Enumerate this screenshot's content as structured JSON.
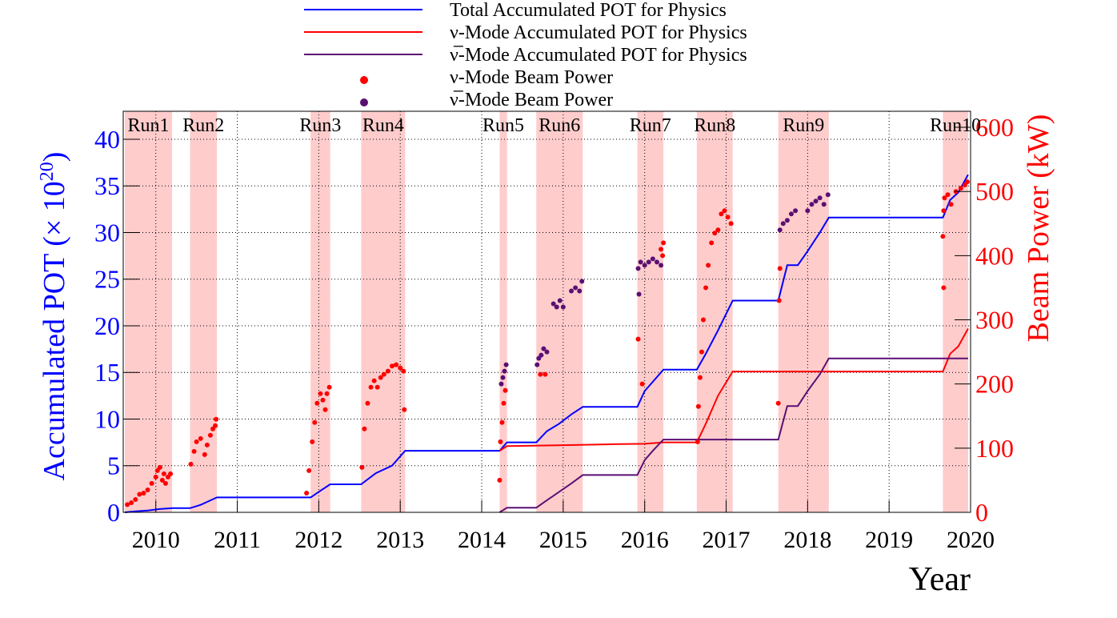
{
  "chart_data": {
    "type": "line",
    "title": "",
    "xlabel": "Year",
    "ylabel_left": "Accumulated POT (× 10",
    "ylabel_left_exp": "20",
    "ylabel_left_close": ")",
    "ylabel_right": "Beam Power (kW)",
    "xlim": [
      2009.6,
      2020.0
    ],
    "ylim_left": [
      0,
      43
    ],
    "ylim_right": [
      0,
      625
    ],
    "x_ticks": [
      2010,
      2011,
      2012,
      2013,
      2014,
      2015,
      2016,
      2017,
      2018,
      2019,
      2020
    ],
    "x_tick_labels": [
      "2010",
      "2011",
      "2012",
      "2013",
      "2014",
      "2015",
      "2016",
      "2017",
      "2018",
      "2019",
      "2020"
    ],
    "y_left_ticks": [
      0,
      5,
      10,
      15,
      20,
      25,
      30,
      35,
      40
    ],
    "y_left_tick_labels": [
      "0",
      "5",
      "10",
      "15",
      "20",
      "25",
      "30",
      "35",
      "40"
    ],
    "y_right_ticks": [
      0,
      100,
      200,
      300,
      400,
      500,
      600
    ],
    "y_right_tick_labels": [
      "0",
      "100",
      "200",
      "300",
      "400",
      "500",
      "600"
    ],
    "grid": true,
    "legend_position": "top-center",
    "colors": {
      "total": "#0000ff",
      "nu": "#ff0000",
      "nubar": "#5b0f73",
      "run_band": "#ffcccc",
      "left_axis": "#0000ff",
      "right_axis": "#ff0000"
    },
    "legend": [
      {
        "label": "Total Accumulated POT for Physics",
        "kind": "line",
        "color": "#0000ff"
      },
      {
        "label": "ν-Mode Accumulated POT for Physics",
        "kind": "line",
        "color": "#ff0000"
      },
      {
        "label": "ν̅-Mode Accumulated POT for Physics",
        "kind": "line",
        "color": "#5b0f73"
      },
      {
        "label": "ν-Mode Beam Power",
        "kind": "marker",
        "color": "#ff0000"
      },
      {
        "label": "ν̅-Mode Beam Power",
        "kind": "marker",
        "color": "#5b0f73"
      }
    ],
    "runs": [
      {
        "name": "Run1",
        "start": 2009.62,
        "end": 2010.2
      },
      {
        "name": "Run2",
        "start": 2010.42,
        "end": 2010.75
      },
      {
        "name": "Run3",
        "start": 2011.9,
        "end": 2012.14
      },
      {
        "name": "Run4",
        "start": 2012.52,
        "end": 2013.06
      },
      {
        "name": "Run5",
        "start": 2014.22,
        "end": 2014.31
      },
      {
        "name": "Run6",
        "start": 2014.67,
        "end": 2015.24
      },
      {
        "name": "Run7",
        "start": 2015.91,
        "end": 2016.23
      },
      {
        "name": "Run8",
        "start": 2016.64,
        "end": 2017.08
      },
      {
        "name": "Run9",
        "start": 2017.64,
        "end": 2018.26
      },
      {
        "name": "Run10",
        "start": 2019.66,
        "end": 2019.97
      }
    ],
    "series": [
      {
        "name": "Total Accumulated POT for Physics",
        "axis": "left",
        "x": [
          2009.62,
          2009.75,
          2009.9,
          2010.05,
          2010.2,
          2010.42,
          2010.55,
          2010.75,
          2011.9,
          2012.0,
          2012.14,
          2012.52,
          2012.7,
          2012.9,
          2013.06,
          2014.22,
          2014.31,
          2014.67,
          2014.8,
          2014.95,
          2015.1,
          2015.24,
          2015.91,
          2016.0,
          2016.1,
          2016.23,
          2016.64,
          2016.75,
          2016.9,
          2017.08,
          2017.64,
          2017.75,
          2017.88,
          2018.0,
          2018.15,
          2018.26,
          2019.66,
          2019.75,
          2019.85,
          2019.97
        ],
        "values": [
          0.0,
          0.1,
          0.2,
          0.35,
          0.45,
          0.45,
          0.8,
          1.6,
          1.6,
          2.2,
          3.0,
          3.0,
          4.2,
          5.0,
          6.6,
          6.6,
          7.5,
          7.5,
          8.7,
          9.5,
          10.5,
          11.3,
          11.3,
          13.0,
          14.0,
          15.3,
          15.3,
          17.0,
          19.5,
          22.7,
          22.7,
          26.5,
          26.5,
          28.0,
          30.0,
          31.6,
          31.6,
          33.5,
          34.3,
          36.2
        ]
      },
      {
        "name": "ν-Mode Accumulated POT for Physics",
        "axis": "left",
        "x": [
          2014.22,
          2014.31,
          2015.0,
          2015.6,
          2016.0,
          2016.23,
          2016.64,
          2016.75,
          2016.9,
          2017.08,
          2019.66,
          2019.75,
          2019.85,
          2019.97
        ],
        "values": [
          6.6,
          7.1,
          7.2,
          7.3,
          7.35,
          7.5,
          7.5,
          9.5,
          12.5,
          15.1,
          15.1,
          17.0,
          17.8,
          19.7
        ]
      },
      {
        "name": "ν̅-Mode Accumulated POT for Physics",
        "axis": "left",
        "x": [
          2014.22,
          2014.31,
          2014.67,
          2014.8,
          2014.95,
          2015.1,
          2015.24,
          2015.91,
          2016.0,
          2016.1,
          2016.23,
          2017.64,
          2017.75,
          2017.88,
          2018.0,
          2018.15,
          2018.26,
          2019.97
        ],
        "values": [
          0.0,
          0.5,
          0.5,
          1.3,
          2.2,
          3.1,
          4.0,
          4.0,
          5.6,
          6.6,
          7.8,
          7.8,
          11.4,
          11.4,
          13.0,
          14.8,
          16.5,
          16.5
        ]
      },
      {
        "name": "ν-Mode Beam Power",
        "axis": "right",
        "kind": "scatter",
        "points": [
          [
            2009.65,
            12
          ],
          [
            2009.7,
            15
          ],
          [
            2009.75,
            20
          ],
          [
            2009.8,
            28
          ],
          [
            2009.85,
            30
          ],
          [
            2009.9,
            35
          ],
          [
            2009.95,
            45
          ],
          [
            2010.0,
            55
          ],
          [
            2010.02,
            65
          ],
          [
            2010.05,
            70
          ],
          [
            2010.08,
            50
          ],
          [
            2010.1,
            60
          ],
          [
            2010.12,
            45
          ],
          [
            2010.15,
            55
          ],
          [
            2010.18,
            60
          ],
          [
            2010.43,
            75
          ],
          [
            2010.47,
            95
          ],
          [
            2010.5,
            110
          ],
          [
            2010.55,
            115
          ],
          [
            2010.6,
            90
          ],
          [
            2010.63,
            105
          ],
          [
            2010.67,
            120
          ],
          [
            2010.7,
            130
          ],
          [
            2010.73,
            135
          ],
          [
            2010.74,
            145
          ],
          [
            2011.85,
            30
          ],
          [
            2011.88,
            65
          ],
          [
            2011.92,
            110
          ],
          [
            2011.95,
            140
          ],
          [
            2011.98,
            170
          ],
          [
            2012.02,
            185
          ],
          [
            2012.05,
            175
          ],
          [
            2012.08,
            160
          ],
          [
            2012.1,
            185
          ],
          [
            2012.13,
            195
          ],
          [
            2012.53,
            70
          ],
          [
            2012.56,
            130
          ],
          [
            2012.6,
            170
          ],
          [
            2012.64,
            195
          ],
          [
            2012.68,
            205
          ],
          [
            2012.72,
            195
          ],
          [
            2012.76,
            210
          ],
          [
            2012.8,
            215
          ],
          [
            2012.85,
            220
          ],
          [
            2012.9,
            228
          ],
          [
            2012.95,
            230
          ],
          [
            2013.0,
            225
          ],
          [
            2013.04,
            220
          ],
          [
            2013.05,
            160
          ],
          [
            2014.22,
            50
          ],
          [
            2014.23,
            110
          ],
          [
            2014.25,
            140
          ],
          [
            2014.27,
            170
          ],
          [
            2014.29,
            190
          ],
          [
            2014.72,
            215
          ],
          [
            2014.78,
            215
          ],
          [
            2015.97,
            200
          ],
          [
            2015.92,
            270
          ],
          [
            2016.65,
            110
          ],
          [
            2016.66,
            165
          ],
          [
            2016.68,
            210
          ],
          [
            2016.7,
            250
          ],
          [
            2016.72,
            300
          ],
          [
            2016.75,
            350
          ],
          [
            2016.78,
            385
          ],
          [
            2016.82,
            420
          ],
          [
            2016.86,
            435
          ],
          [
            2016.9,
            440
          ],
          [
            2016.94,
            465
          ],
          [
            2016.98,
            470
          ],
          [
            2017.02,
            460
          ],
          [
            2017.06,
            450
          ],
          [
            2016.23,
            420
          ],
          [
            2016.2,
            410
          ],
          [
            2016.22,
            400
          ],
          [
            2017.64,
            170
          ],
          [
            2017.65,
            330
          ],
          [
            2017.66,
            380
          ],
          [
            2019.66,
            430
          ],
          [
            2019.67,
            470
          ],
          [
            2019.68,
            490
          ],
          [
            2019.72,
            495
          ],
          [
            2019.76,
            480
          ],
          [
            2019.82,
            500
          ],
          [
            2019.88,
            505
          ],
          [
            2019.93,
            510
          ],
          [
            2019.96,
            515
          ],
          [
            2019.67,
            350
          ]
        ]
      },
      {
        "name": "ν̅-Mode Beam Power",
        "axis": "right",
        "kind": "scatter",
        "points": [
          [
            2014.24,
            200
          ],
          [
            2014.26,
            210
          ],
          [
            2014.28,
            220
          ],
          [
            2014.3,
            230
          ],
          [
            2014.68,
            230
          ],
          [
            2014.7,
            240
          ],
          [
            2014.73,
            245
          ],
          [
            2014.76,
            255
          ],
          [
            2014.8,
            250
          ],
          [
            2014.88,
            325
          ],
          [
            2014.92,
            320
          ],
          [
            2014.96,
            330
          ],
          [
            2015.0,
            320
          ],
          [
            2015.1,
            345
          ],
          [
            2015.15,
            350
          ],
          [
            2015.2,
            345
          ],
          [
            2015.23,
            360
          ],
          [
            2015.92,
            380
          ],
          [
            2015.95,
            390
          ],
          [
            2016.0,
            385
          ],
          [
            2016.05,
            390
          ],
          [
            2016.1,
            395
          ],
          [
            2016.15,
            390
          ],
          [
            2016.2,
            385
          ],
          [
            2015.93,
            340
          ],
          [
            2017.66,
            440
          ],
          [
            2017.7,
            450
          ],
          [
            2017.75,
            455
          ],
          [
            2017.8,
            465
          ],
          [
            2017.85,
            470
          ],
          [
            2018.0,
            470
          ],
          [
            2018.05,
            480
          ],
          [
            2018.1,
            485
          ],
          [
            2018.15,
            490
          ],
          [
            2018.2,
            480
          ],
          [
            2018.25,
            495
          ]
        ]
      }
    ]
  }
}
